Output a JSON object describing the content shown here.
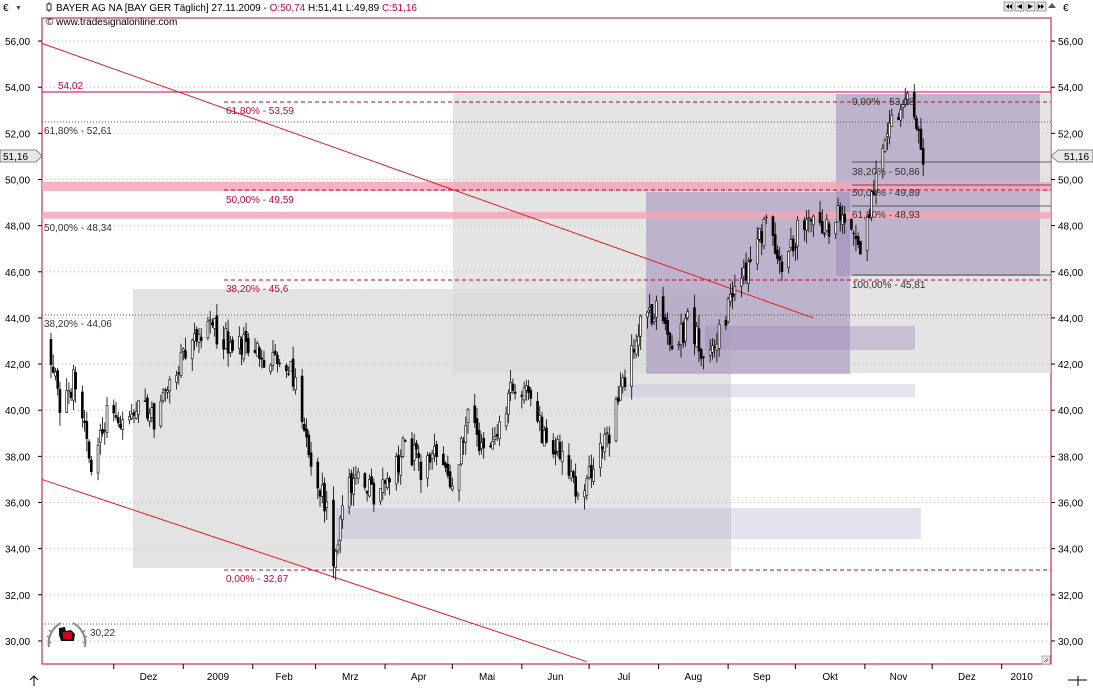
{
  "header": {
    "currency_left": "€",
    "dropdown_glyph": "▼",
    "symbol": "BAYER AG  NA [BAY GER  Täglich] 27.11.2009 - ",
    "open": "O:50,74",
    "hl": " H:51,41 L:49,89 ",
    "close": "C:51,16",
    "source": "© www.tradesignalonline.com",
    "currency_right": "€"
  },
  "price_tags": {
    "left": "51,16",
    "right": "51,16"
  },
  "levels": {
    "top_line_label": "54,02",
    "fib_large": [
      "61,80% - 53,59",
      "50,00% - 49,59",
      "38,20% - 45,6",
      "0,00% - 32,67"
    ],
    "fib_left": [
      "61,80% - 52,61",
      "50,00% - 48,34",
      "38,20% - 44,06",
      "30,22"
    ],
    "fib_recent": [
      "0,00% - 53,98",
      "38,20% - 50,86",
      "50,00% - 49,89",
      "61,80% - 48,93",
      "100,00% - 45,81"
    ]
  },
  "colors": {
    "trendline": "#e02020",
    "fib": "#c8003c",
    "zone_pink": "#f4a7b9",
    "box_gray": "#d9d9d9",
    "box_purple": "#9c8ab8",
    "candle": "#000000"
  },
  "icons": [
    "nav-arrows-icon",
    "scroll-arrow-icon",
    "logo-eagle-icon",
    "resize-grip-icon"
  ],
  "chart_data": {
    "type": "candlestick",
    "symbol": "BAYER AG NA",
    "date": "27.11.2009",
    "ylim": [
      29,
      57
    ],
    "y_ticks": [
      "30,00",
      "32,00",
      "34,00",
      "36,00",
      "38,00",
      "40,00",
      "42,00",
      "44,00",
      "46,00",
      "48,00",
      "50,00",
      "52,00",
      "54,00",
      "56,00"
    ],
    "x_ticks": [
      "Dez",
      "2009",
      "Feb",
      "Mrz",
      "Apr",
      "Mai",
      "Jun",
      "Jul",
      "Aug",
      "Sep",
      "Okt",
      "Nov",
      "Dez",
      "2010"
    ],
    "month_dates": [
      "2008-12-01",
      "2009-01-01",
      "2009-02-01",
      "2009-03-01",
      "2009-04-01",
      "2009-05-01",
      "2009-06-01",
      "2009-07-01",
      "2009-08-01",
      "2009-09-01",
      "2009-10-01",
      "2009-11-01",
      "2009-12-01",
      "2010-01-01"
    ],
    "x_range": [
      "2008-10-30",
      "2010-01-23"
    ],
    "path": [
      [
        "2008-11-01",
        43.0
      ],
      [
        "2008-11-07",
        40.2
      ],
      [
        "2008-11-14",
        41.5
      ],
      [
        "2008-11-21",
        37.6
      ],
      [
        "2008-11-28",
        40.0
      ],
      [
        "2008-12-05",
        39.2
      ],
      [
        "2008-12-12",
        40.5
      ],
      [
        "2008-12-19",
        39.6
      ],
      [
        "2008-12-26",
        40.8
      ],
      [
        "2009-01-02",
        42.5
      ],
      [
        "2009-01-09",
        43.6
      ],
      [
        "2009-01-16",
        43.4
      ],
      [
        "2009-01-23",
        42.6
      ],
      [
        "2009-01-30",
        43.0
      ],
      [
        "2009-02-06",
        42.2
      ],
      [
        "2009-02-13",
        42.5
      ],
      [
        "2009-02-20",
        41.2
      ],
      [
        "2009-02-27",
        38.0
      ],
      [
        "2009-03-06",
        35.8
      ],
      [
        "2009-03-09",
        33.0
      ],
      [
        "2009-03-13",
        36.2
      ],
      [
        "2009-03-20",
        37.6
      ],
      [
        "2009-03-27",
        36.0
      ],
      [
        "2009-04-03",
        37.0
      ],
      [
        "2009-04-10",
        38.5
      ],
      [
        "2009-04-17",
        37.5
      ],
      [
        "2009-04-24",
        38.2
      ],
      [
        "2009-05-01",
        37.0
      ],
      [
        "2009-05-08",
        39.5
      ],
      [
        "2009-05-15",
        38.5
      ],
      [
        "2009-05-22",
        39.5
      ],
      [
        "2009-05-29",
        41.3
      ],
      [
        "2009-06-05",
        40.5
      ],
      [
        "2009-06-12",
        38.5
      ],
      [
        "2009-06-19",
        38.0
      ],
      [
        "2009-06-26",
        36.4
      ],
      [
        "2009-07-03",
        37.5
      ],
      [
        "2009-07-10",
        39.0
      ],
      [
        "2009-07-17",
        41.5
      ],
      [
        "2009-07-24",
        43.5
      ],
      [
        "2009-07-31",
        44.2
      ],
      [
        "2009-08-07",
        42.5
      ],
      [
        "2009-08-14",
        43.8
      ],
      [
        "2009-08-21",
        42.5
      ],
      [
        "2009-08-28",
        43.5
      ],
      [
        "2009-09-04",
        45.0
      ],
      [
        "2009-09-11",
        46.5
      ],
      [
        "2009-09-18",
        48.2
      ],
      [
        "2009-09-25",
        46.3
      ],
      [
        "2009-10-02",
        47.8
      ],
      [
        "2009-10-09",
        48.6
      ],
      [
        "2009-10-16",
        48.0
      ],
      [
        "2009-10-23",
        48.5
      ],
      [
        "2009-10-30",
        46.6
      ],
      [
        "2009-11-06",
        50.0
      ],
      [
        "2009-11-13",
        52.8
      ],
      [
        "2009-11-20",
        53.7
      ],
      [
        "2009-11-27",
        51.16
      ]
    ],
    "last_price": 51.16,
    "trendlines": [
      {
        "from": [
          "2008-10-30",
          55.9
        ],
        "to": [
          "2009-10-09",
          44.0
        ]
      },
      {
        "from": [
          "2008-10-30",
          37.0
        ],
        "to": [
          "2009-06-30",
          29.1
        ]
      }
    ],
    "horizontal_levels": [
      54.02,
      53.59,
      52.61,
      49.59,
      48.34,
      45.6,
      44.06,
      32.67,
      30.22,
      53.98,
      50.86,
      49.89,
      48.93,
      45.81
    ],
    "zones": [
      [
        49.5,
        49.9
      ],
      [
        48.3,
        48.6
      ]
    ]
  }
}
